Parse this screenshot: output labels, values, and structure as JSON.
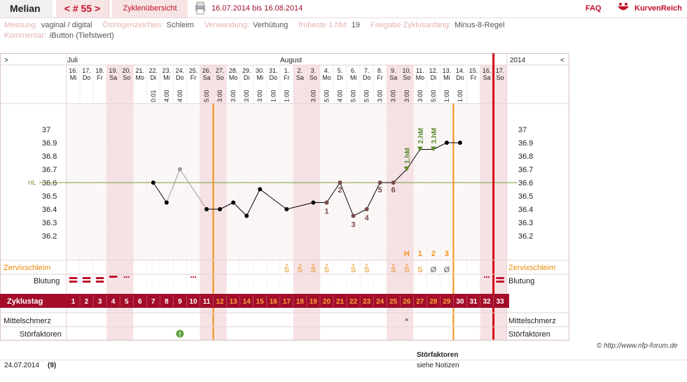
{
  "topbar": {
    "name": "Melian",
    "cycle_label": "< # 55 >",
    "overview_link": "Zyklenübersicht",
    "date_range": "16.07.2014 bis 16.08.2014",
    "faq_link": "FAQ",
    "brand": "KurvenReich",
    "pdf_icon": "printer-icon",
    "brand_icon": "bowl-logo-icon"
  },
  "meta": {
    "messung_label": "Messung:",
    "messung_value": "vaginal / digital",
    "oestrogen_label": "Östrogenzeichen:",
    "oestrogen_value": "Schleim",
    "verwendung_label": "Verwendung:",
    "verwendung_value": "Verhütung",
    "fruehste_label": "früheste 1.hM:",
    "fruehste_value": "19",
    "freigabe_label": "Freigabe Zyklusanfang:",
    "freigabe_value": "Minus-8-Regel",
    "kommentar_label": "Kommentar:",
    "kommentar_value": "iButton (Tiefstwert)"
  },
  "colors": {
    "brand": "#c0102a",
    "accent": "#a0001e",
    "cycle_bar": "#a30d2a",
    "orange": "#f39016",
    "hl_line": "#7a9a3a",
    "curve": "#000000",
    "muted_point": "#9a9a9a",
    "weekend_col": "#f6e2e4",
    "mucus_text": "#e88a0a",
    "grid": "#e4c8cc",
    "plot_bg": "#fbf7f7",
    "numbers": "#7a4a4a",
    "hm_label": "#5a8a2a"
  },
  "chart_data": {
    "type": "line",
    "header": {
      "left_arrow": ">",
      "right_arrow": "<",
      "year": "2014",
      "months": [
        {
          "label": "Juli"
        },
        {
          "label": "August"
        }
      ]
    },
    "days": [
      {
        "date": "16.",
        "wd": "Mi",
        "time": "",
        "cycle": 1,
        "weekend": false
      },
      {
        "date": "17.",
        "wd": "Do",
        "time": "",
        "cycle": 2,
        "weekend": false
      },
      {
        "date": "18.",
        "wd": "Fr",
        "time": "",
        "cycle": 3,
        "weekend": false
      },
      {
        "date": "19.",
        "wd": "Sa",
        "time": "",
        "cycle": 4,
        "weekend": true
      },
      {
        "date": "20.",
        "wd": "So",
        "time": "",
        "cycle": 5,
        "weekend": true
      },
      {
        "date": "21.",
        "wd": "Mo",
        "time": "",
        "cycle": 6,
        "weekend": false
      },
      {
        "date": "22.",
        "wd": "Di",
        "time": "0:01",
        "cycle": 7,
        "weekend": false
      },
      {
        "date": "23.",
        "wd": "Mi",
        "time": "4:00",
        "cycle": 8,
        "weekend": false
      },
      {
        "date": "24.",
        "wd": "Do",
        "time": "4:00",
        "cycle": 9,
        "weekend": false
      },
      {
        "date": "25.",
        "wd": "Fr",
        "time": "",
        "cycle": 10,
        "weekend": false
      },
      {
        "date": "26.",
        "wd": "Sa",
        "time": "5:00",
        "cycle": 11,
        "weekend": true
      },
      {
        "date": "27.",
        "wd": "So",
        "time": "3:00",
        "cycle": 12,
        "weekend": true
      },
      {
        "date": "28.",
        "wd": "Mo",
        "time": "3:00",
        "cycle": 13,
        "weekend": false
      },
      {
        "date": "29.",
        "wd": "Di",
        "time": "3:00",
        "cycle": 14,
        "weekend": false
      },
      {
        "date": "30.",
        "wd": "Mi",
        "time": "3:00",
        "cycle": 15,
        "weekend": false
      },
      {
        "date": "31.",
        "wd": "Do",
        "time": "1:00",
        "cycle": 16,
        "weekend": false
      },
      {
        "date": "1.",
        "wd": "Fr",
        "time": "1:00",
        "cycle": 17,
        "weekend": false
      },
      {
        "date": "2.",
        "wd": "Sa",
        "time": "",
        "cycle": 18,
        "weekend": true
      },
      {
        "date": "3.",
        "wd": "So",
        "time": "3:00",
        "cycle": 19,
        "weekend": true
      },
      {
        "date": "4.",
        "wd": "Mo",
        "time": "5:00",
        "cycle": 20,
        "weekend": false
      },
      {
        "date": "5.",
        "wd": "Di",
        "time": "4:00",
        "cycle": 21,
        "weekend": false
      },
      {
        "date": "6.",
        "wd": "Mi",
        "time": "5:00",
        "cycle": 22,
        "weekend": false
      },
      {
        "date": "7.",
        "wd": "Do",
        "time": "5:00",
        "cycle": 23,
        "weekend": false
      },
      {
        "date": "8.",
        "wd": "Fr",
        "time": "3:00",
        "cycle": 24,
        "weekend": false
      },
      {
        "date": "9.",
        "wd": "Sa",
        "time": "3:00",
        "cycle": 25,
        "weekend": true
      },
      {
        "date": "10.",
        "wd": "So",
        "time": "3:00",
        "cycle": 26,
        "weekend": true
      },
      {
        "date": "11.",
        "wd": "Mo",
        "time": "3:00",
        "cycle": 27,
        "weekend": false
      },
      {
        "date": "12.",
        "wd": "Di",
        "time": "5:00",
        "cycle": 28,
        "weekend": false
      },
      {
        "date": "13.",
        "wd": "Mi",
        "time": "1:00",
        "cycle": 29,
        "weekend": false
      },
      {
        "date": "14.",
        "wd": "Do",
        "time": "1:00",
        "cycle": 30,
        "weekend": false
      },
      {
        "date": "15.",
        "wd": "Fr",
        "time": "",
        "cycle": 31,
        "weekend": false
      },
      {
        "date": "16.",
        "wd": "Sa",
        "time": "",
        "cycle": 32,
        "weekend": true
      },
      {
        "date": "17.",
        "wd": "So",
        "time": "",
        "cycle": 33,
        "weekend": true
      }
    ],
    "y_ticks": [
      "37",
      "36.9",
      "36.8",
      "36.7",
      "36.6",
      "36.5",
      "36.4",
      "36.3",
      "36.2"
    ],
    "ylim": [
      36.1,
      37.15
    ],
    "hl_label": "HL",
    "hl_value": 36.6,
    "temps": [
      {
        "day": 7,
        "value": 36.6,
        "muted": false,
        "label": "",
        "connect": true
      },
      {
        "day": 8,
        "value": 36.45,
        "muted": false,
        "label": "",
        "connect": false
      },
      {
        "day": 9,
        "value": 36.7,
        "muted": true,
        "label": "",
        "connect": false
      },
      {
        "day": 11,
        "value": 36.4,
        "muted": false,
        "label": "",
        "connect": true
      },
      {
        "day": 12,
        "value": 36.4,
        "muted": false,
        "label": "",
        "connect": true
      },
      {
        "day": 13,
        "value": 36.45,
        "muted": false,
        "label": "",
        "connect": true
      },
      {
        "day": 14,
        "value": 36.35,
        "muted": false,
        "label": "",
        "connect": true
      },
      {
        "day": 15,
        "value": 36.55,
        "muted": false,
        "label": "",
        "connect": true
      },
      {
        "day": 17,
        "value": 36.4,
        "muted": false,
        "label": "",
        "connect": true
      },
      {
        "day": 19,
        "value": 36.45,
        "muted": false,
        "label": "",
        "connect": true
      },
      {
        "day": 20,
        "value": 36.45,
        "muted": false,
        "label": "1",
        "connect": true
      },
      {
        "day": 21,
        "value": 36.6,
        "muted": false,
        "label": "2",
        "connect": true
      },
      {
        "day": 22,
        "value": 36.35,
        "muted": false,
        "label": "3",
        "connect": true
      },
      {
        "day": 23,
        "value": 36.4,
        "muted": false,
        "label": "4",
        "connect": true
      },
      {
        "day": 24,
        "value": 36.6,
        "muted": false,
        "label": "5",
        "connect": true
      },
      {
        "day": 25,
        "value": 36.6,
        "muted": false,
        "label": "6",
        "connect": true
      },
      {
        "day": 26,
        "value": 36.7,
        "muted": false,
        "label": "",
        "hm": "1.hM",
        "connect": true
      },
      {
        "day": 27,
        "value": 36.85,
        "muted": false,
        "label": "",
        "hm": "2.hM",
        "connect": true
      },
      {
        "day": 28,
        "value": 36.85,
        "muted": false,
        "label": "",
        "hm": "3.hM",
        "connect": true
      },
      {
        "day": 29,
        "value": 36.9,
        "muted": false,
        "label": "",
        "connect": true
      },
      {
        "day": 30,
        "value": 36.9,
        "muted": false,
        "label": "",
        "connect": true
      }
    ],
    "counts": [
      {
        "day": 26,
        "text": "H"
      },
      {
        "day": 27,
        "text": "1"
      },
      {
        "day": 28,
        "text": "2"
      },
      {
        "day": 29,
        "text": "3"
      }
    ],
    "mucus": [
      {
        "day": 17,
        "sym": "S",
        "plus": true
      },
      {
        "day": 18,
        "sym": "S",
        "plus": true
      },
      {
        "day": 19,
        "sym": "S",
        "plus": true
      },
      {
        "day": 20,
        "sym": "S",
        "plus": true
      },
      {
        "day": 22,
        "sym": "S",
        "plus": true
      },
      {
        "day": 23,
        "sym": "S",
        "plus": true
      },
      {
        "day": 25,
        "sym": "S",
        "plus": true
      },
      {
        "day": 26,
        "sym": "S",
        "plus": true
      },
      {
        "day": 27,
        "sym": "S",
        "plus": false
      },
      {
        "day": 28,
        "sym": "Ø",
        "plus": false
      },
      {
        "day": 29,
        "sym": "Ø",
        "plus": false
      }
    ],
    "bleeding": [
      {
        "day": 1,
        "kind": "heavy"
      },
      {
        "day": 2,
        "kind": "heavy"
      },
      {
        "day": 3,
        "kind": "heavy"
      },
      {
        "day": 4,
        "kind": "medium"
      },
      {
        "day": 5,
        "kind": "dots"
      },
      {
        "day": 10,
        "kind": "dots"
      },
      {
        "day": 32,
        "kind": "dots"
      },
      {
        "day": 33,
        "kind": "heavy"
      }
    ],
    "mittelschmerz": [
      {
        "day": 26
      }
    ],
    "stoerfaktoren": [
      {
        "day": 9,
        "symbol": "!"
      }
    ],
    "row_labels": {
      "cervix": "Zervixschleim",
      "bleed": "Blutung",
      "cycle": "Zyklustag",
      "mittel": "Mittelschmerz",
      "stoer": "Störfaktoren"
    },
    "vlines": [
      {
        "after_day": 11,
        "kind": "orange"
      },
      {
        "after_day": 29,
        "kind": "orange"
      },
      {
        "after_day": 32,
        "kind": "red"
      }
    ],
    "dot_lines_after": [
      1,
      2,
      3,
      4,
      5,
      6,
      7,
      8,
      9,
      10,
      12,
      13,
      14,
      15,
      16,
      17,
      18,
      19,
      20,
      21,
      22,
      23,
      24,
      25,
      26,
      27,
      28,
      30,
      31,
      32
    ]
  },
  "footer": {
    "copyright": "© http://www.nfp-forum.de",
    "stoer_heading": "Störfaktoren",
    "note_date": "24.07.2014",
    "note_count": "(9)",
    "note_text": "siehe Notizen"
  }
}
